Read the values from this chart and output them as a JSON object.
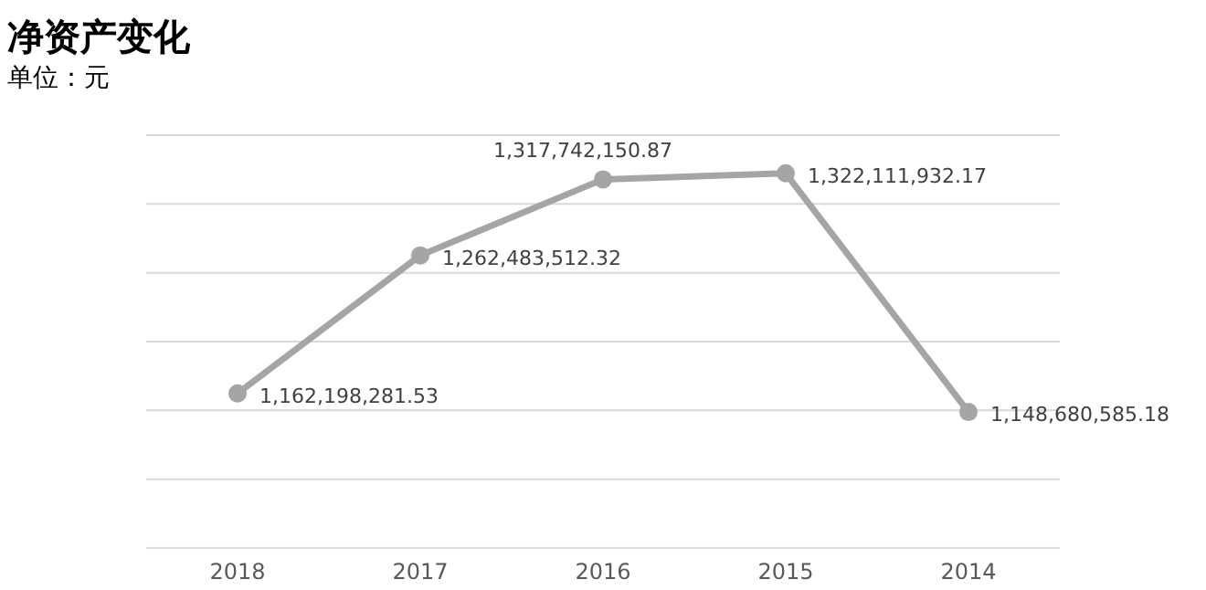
{
  "chart_data": {
    "type": "line",
    "title": "净资产变化",
    "subtitle": "单位：元",
    "categories": [
      "2018",
      "2017",
      "2016",
      "2015",
      "2014"
    ],
    "series": [
      {
        "color": "#a5a5a5",
        "values": [
          1162198281.53,
          1262483512.32,
          1317742150.87,
          1322111932.17,
          1148680585.18
        ],
        "value_labels": [
          "1,162,198,281.53",
          "1,262,483,512.32",
          "1,317,742,150.87",
          "1,322,111,932.17",
          "1,148,680,585.18"
        ]
      }
    ],
    "grid": "y",
    "marker": "circle",
    "line_style": "solid",
    "tick_labels": "x"
  }
}
